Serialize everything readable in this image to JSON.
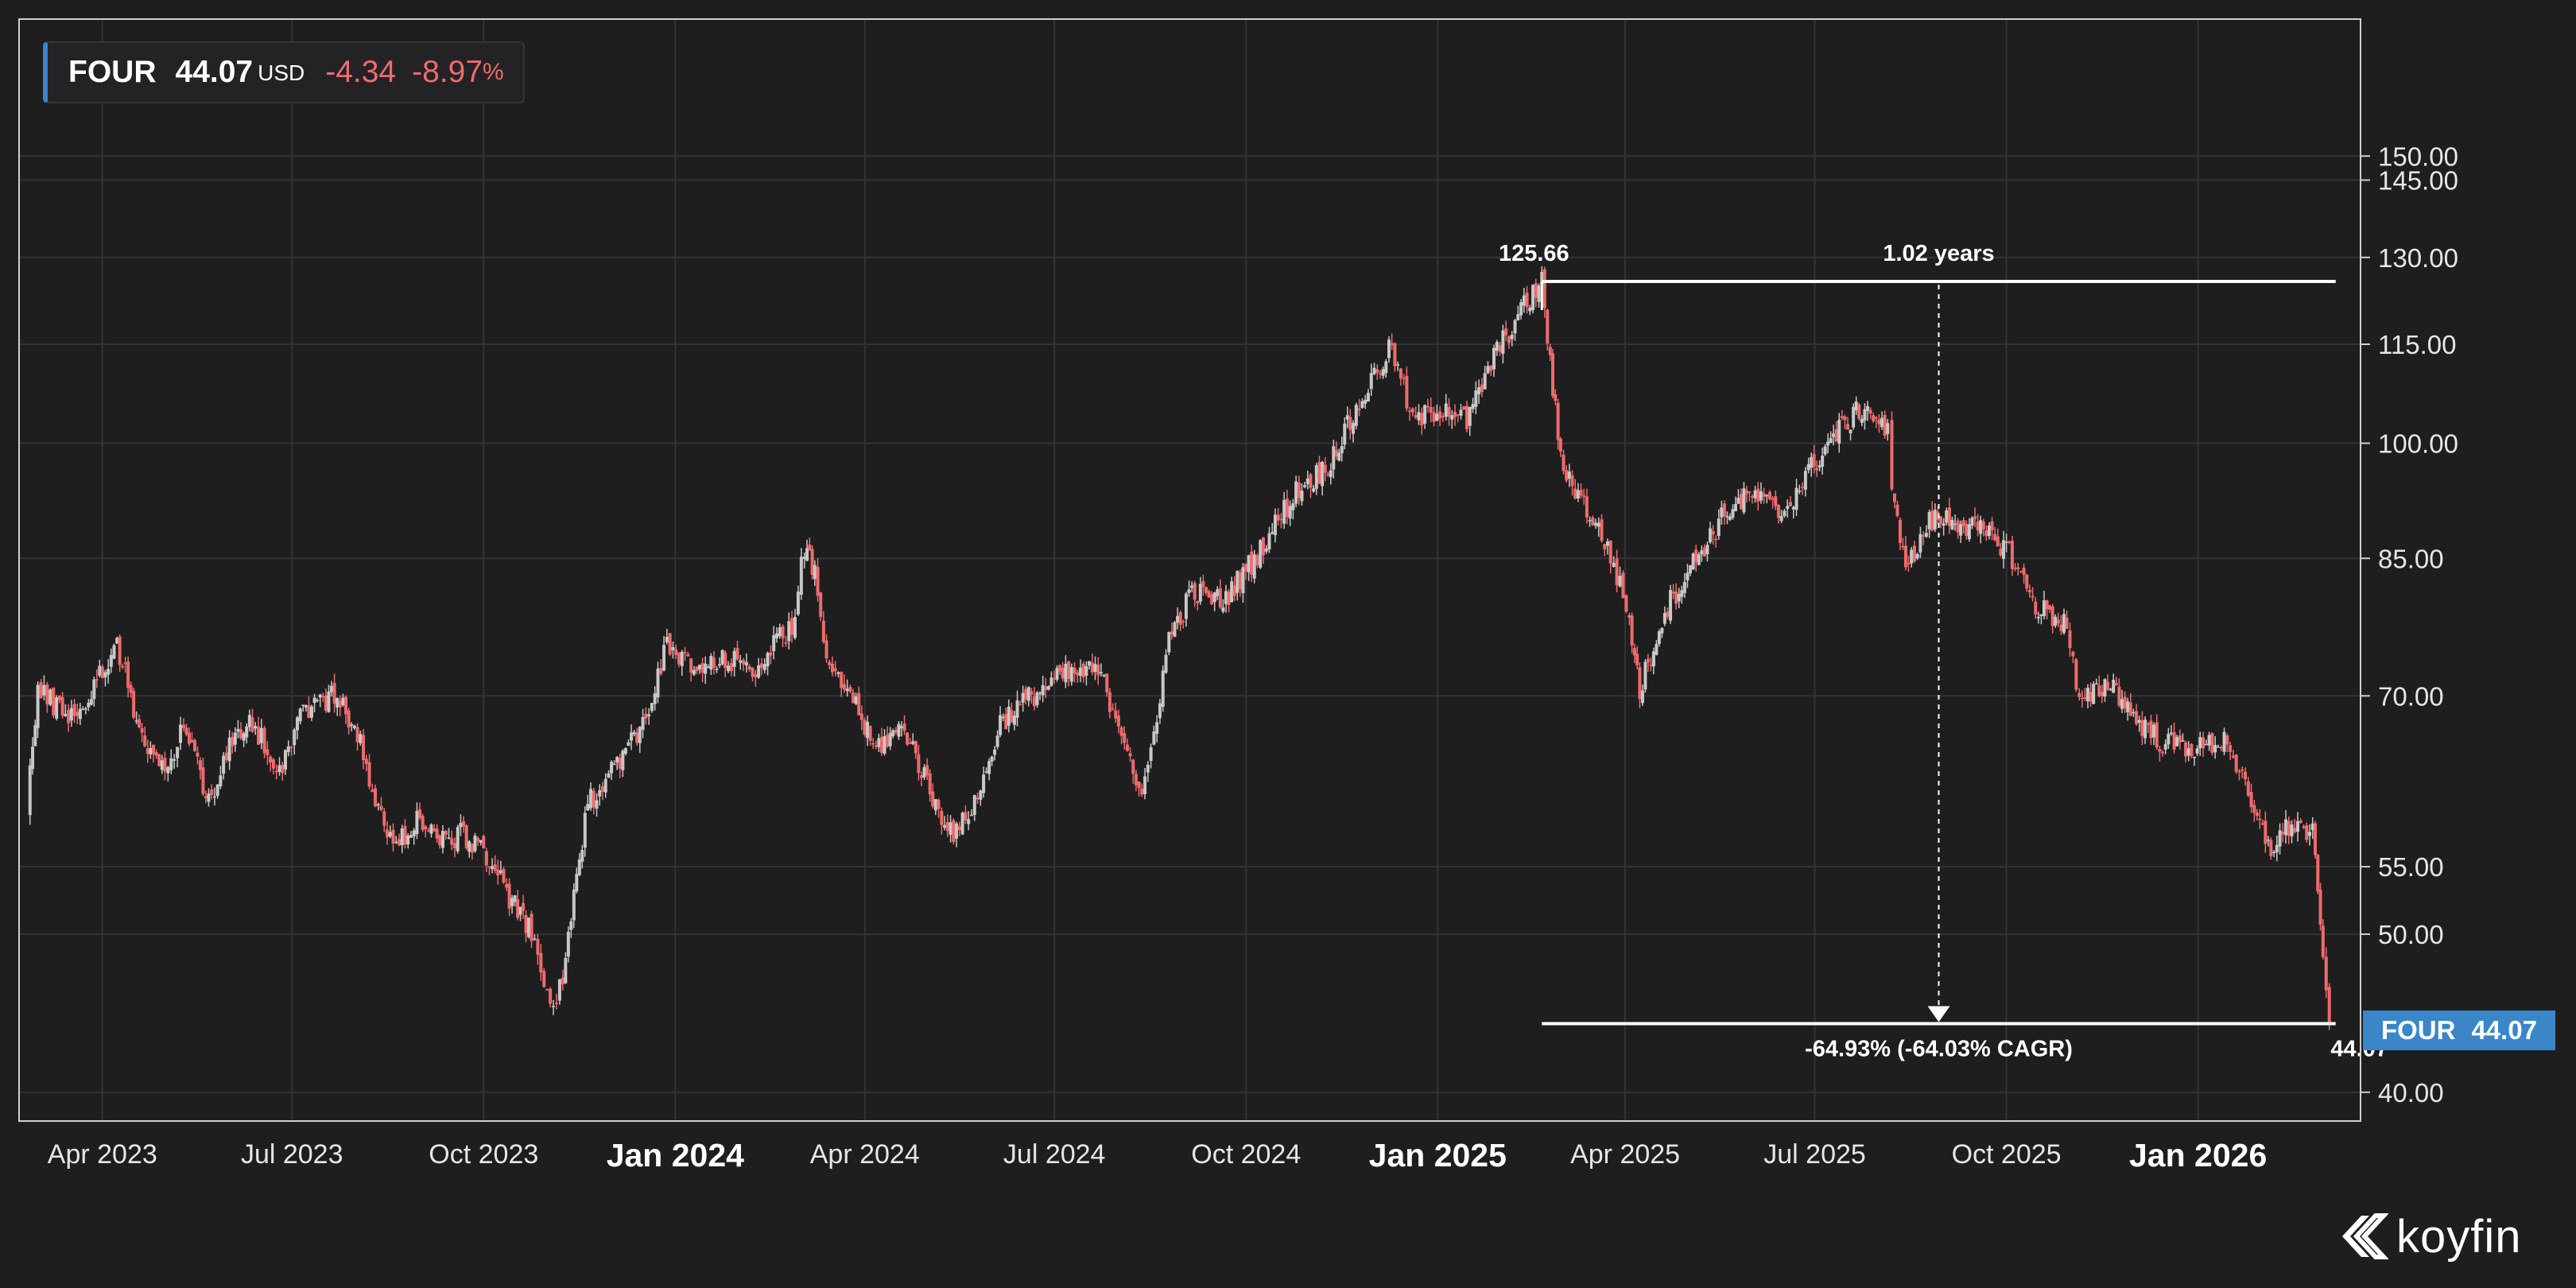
{
  "chart_data": {
    "type": "candlestick",
    "symbol": "FOUR",
    "currency": "USD",
    "last_price": "44.07",
    "change": "-4.34",
    "change_pct": "-8.97",
    "pct_sign": "%",
    "y_scale": "log",
    "ylim": [
      39.5,
      158
    ],
    "y_ticks": [
      "150.00",
      "145.00",
      "130.00",
      "115.00",
      "100.00",
      "85.00",
      "70.00",
      "55.00",
      "50.00",
      "40.00"
    ],
    "x_ticks": [
      {
        "label": "Apr 2023",
        "date": "2023-04-01",
        "major": false
      },
      {
        "label": "Jul 2023",
        "date": "2023-07-01",
        "major": false
      },
      {
        "label": "Oct 2023",
        "date": "2023-10-01",
        "major": false
      },
      {
        "label": "Jan 2024",
        "date": "2024-01-01",
        "major": true
      },
      {
        "label": "Apr 2024",
        "date": "2024-04-01",
        "major": false
      },
      {
        "label": "Jul 2024",
        "date": "2024-07-01",
        "major": false
      },
      {
        "label": "Oct 2024",
        "date": "2024-10-01",
        "major": false
      },
      {
        "label": "Jan 2025",
        "date": "2025-01-01",
        "major": true
      },
      {
        "label": "Apr 2025",
        "date": "2025-04-01",
        "major": false
      },
      {
        "label": "Jul 2025",
        "date": "2025-07-01",
        "major": false
      },
      {
        "label": "Oct 2025",
        "date": "2025-10-01",
        "major": false
      },
      {
        "label": "Jan 2026",
        "date": "2026-01-01",
        "major": true
      }
    ],
    "xlim": [
      "2023-02-20",
      "2026-03-20"
    ],
    "grid": true,
    "colors": {
      "up": "#c8c8c8",
      "down": "#ef6b6b",
      "accent": "#3a86c8",
      "background": "#1e1e1f",
      "grid": "#333336"
    },
    "price_path": [
      [
        "2023-02-24",
        60.5
      ],
      [
        "2023-03-01",
        70.5
      ],
      [
        "2023-03-10",
        69.0
      ],
      [
        "2023-03-20",
        68.0
      ],
      [
        "2023-04-01",
        72.5
      ],
      [
        "2023-04-08",
        75.5
      ],
      [
        "2023-04-20",
        66.0
      ],
      [
        "2023-05-01",
        62.5
      ],
      [
        "2023-05-10",
        67.5
      ],
      [
        "2023-05-22",
        60.5
      ],
      [
        "2023-06-01",
        65.0
      ],
      [
        "2023-06-12",
        67.5
      ],
      [
        "2023-06-25",
        63.0
      ],
      [
        "2023-07-05",
        68.5
      ],
      [
        "2023-07-20",
        70.0
      ],
      [
        "2023-07-31",
        67.5
      ],
      [
        "2023-08-10",
        60.0
      ],
      [
        "2023-08-20",
        56.5
      ],
      [
        "2023-08-30",
        59.0
      ],
      [
        "2023-09-10",
        57.0
      ],
      [
        "2023-09-20",
        57.5
      ],
      [
        "2023-10-01",
        56.5
      ],
      [
        "2023-10-12",
        53.0
      ],
      [
        "2023-10-24",
        50.0
      ],
      [
        "2023-11-02",
        45.0
      ],
      [
        "2023-11-08",
        47.0
      ],
      [
        "2023-11-20",
        60.0
      ],
      [
        "2023-11-30",
        63.0
      ],
      [
        "2023-12-15",
        66.5
      ],
      [
        "2023-12-28",
        75.0
      ],
      [
        "2024-01-10",
        72.5
      ],
      [
        "2024-01-25",
        73.5
      ],
      [
        "2024-02-10",
        73.0
      ],
      [
        "2024-02-26",
        77.5
      ],
      [
        "2024-03-03",
        86.0
      ],
      [
        "2024-03-08",
        83.0
      ],
      [
        "2024-03-15",
        72.0
      ],
      [
        "2024-03-25",
        70.5
      ],
      [
        "2024-04-05",
        65.0
      ],
      [
        "2024-04-20",
        67.0
      ],
      [
        "2024-05-05",
        60.0
      ],
      [
        "2024-05-15",
        57.5
      ],
      [
        "2024-05-28",
        62.0
      ],
      [
        "2024-06-05",
        67.5
      ],
      [
        "2024-06-20",
        70.0
      ],
      [
        "2024-07-05",
        72.0
      ],
      [
        "2024-07-22",
        72.5
      ],
      [
        "2024-08-05",
        65.5
      ],
      [
        "2024-08-12",
        60.0
      ],
      [
        "2024-08-25",
        76.0
      ],
      [
        "2024-09-05",
        81.0
      ],
      [
        "2024-09-20",
        80.0
      ],
      [
        "2024-10-05",
        85.0
      ],
      [
        "2024-10-25",
        93.5
      ],
      [
        "2024-11-08",
        96.5
      ],
      [
        "2024-11-20",
        103.0
      ],
      [
        "2024-12-03",
        111.0
      ],
      [
        "2024-12-10",
        114.5
      ],
      [
        "2024-12-20",
        103.0
      ],
      [
        "2025-01-05",
        105.5
      ],
      [
        "2025-01-15",
        103.0
      ],
      [
        "2025-01-28",
        113.0
      ],
      [
        "2025-02-10",
        120.5
      ],
      [
        "2025-02-20",
        125.66
      ],
      [
        "2025-02-24",
        112.0
      ],
      [
        "2025-03-01",
        97.5
      ],
      [
        "2025-03-15",
        90.5
      ],
      [
        "2025-03-25",
        85.5
      ],
      [
        "2025-04-03",
        78.0
      ],
      [
        "2025-04-08",
        70.5
      ],
      [
        "2025-04-20",
        79.0
      ],
      [
        "2025-05-05",
        85.0
      ],
      [
        "2025-05-20",
        91.0
      ],
      [
        "2025-06-01",
        93.0
      ],
      [
        "2025-06-15",
        90.5
      ],
      [
        "2025-06-28",
        96.0
      ],
      [
        "2025-07-10",
        101.0
      ],
      [
        "2025-07-25",
        105.5
      ],
      [
        "2025-08-05",
        101.5
      ],
      [
        "2025-08-07",
        92.5
      ],
      [
        "2025-08-15",
        84.0
      ],
      [
        "2025-08-25",
        89.5
      ],
      [
        "2025-09-05",
        90.0
      ],
      [
        "2025-09-20",
        88.0
      ],
      [
        "2025-10-01",
        86.5
      ],
      [
        "2025-10-15",
        79.5
      ],
      [
        "2025-10-30",
        77.5
      ],
      [
        "2025-11-05",
        69.0
      ],
      [
        "2025-11-20",
        71.5
      ],
      [
        "2025-12-01",
        68.0
      ],
      [
        "2025-12-15",
        65.5
      ],
      [
        "2026-01-02",
        65.0
      ],
      [
        "2026-01-15",
        66.0
      ],
      [
        "2026-01-28",
        59.0
      ],
      [
        "2026-02-05",
        56.5
      ],
      [
        "2026-02-15",
        58.5
      ],
      [
        "2026-02-25",
        57.5
      ],
      [
        "2026-03-02",
        48.4
      ],
      [
        "2026-03-05",
        44.07
      ]
    ],
    "measure": {
      "high_value": "125.66",
      "low_value": "44.07",
      "duration_label": "1.02 years",
      "change_label": "-64.93% (-64.03% CAGR)",
      "start_date": "2025-02-20",
      "end_date": "2026-03-05"
    }
  },
  "brand": {
    "name": "koyfin"
  }
}
